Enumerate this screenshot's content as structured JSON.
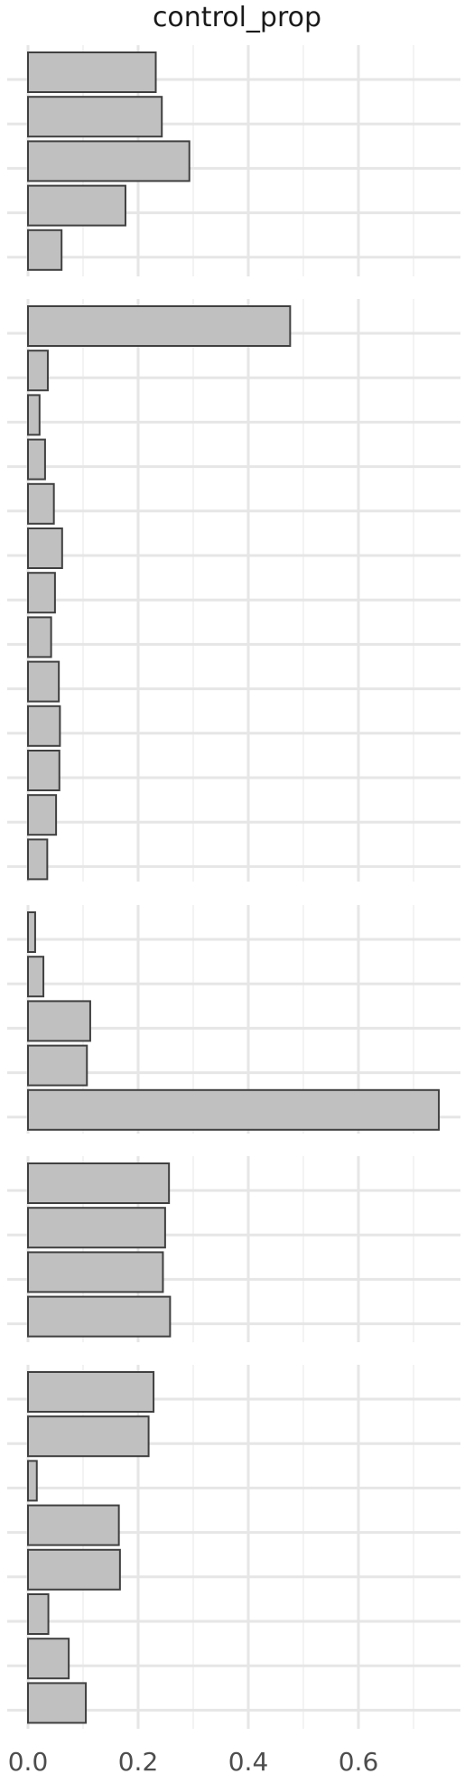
{
  "chart_data": {
    "type": "bar",
    "orientation": "horizontal",
    "title": "control_prop",
    "xlabel": "",
    "ylabel": "",
    "xlim": [
      0,
      0.78
    ],
    "x_ticks": [
      0.0,
      0.2,
      0.4,
      0.6
    ],
    "x_tick_labels": [
      "0.0",
      "0.2",
      "0.4",
      "0.6"
    ],
    "grid": true,
    "bar_fill": "#c0c0c0",
    "bar_stroke": "#404040",
    "grid_color": "#e6e6e6",
    "panels": [
      {
        "values": [
          0.232,
          0.243,
          0.293,
          0.177,
          0.061
        ]
      },
      {
        "values": [
          0.476,
          0.036,
          0.021,
          0.031,
          0.047,
          0.062,
          0.049,
          0.042,
          0.056,
          0.058,
          0.057,
          0.051,
          0.035
        ]
      },
      {
        "values": [
          0.013,
          0.028,
          0.113,
          0.107,
          0.746
        ]
      },
      {
        "values": [
          0.256,
          0.249,
          0.245,
          0.258
        ]
      },
      {
        "values": [
          0.228,
          0.219,
          0.016,
          0.165,
          0.167,
          0.037,
          0.074,
          0.105
        ]
      }
    ]
  }
}
